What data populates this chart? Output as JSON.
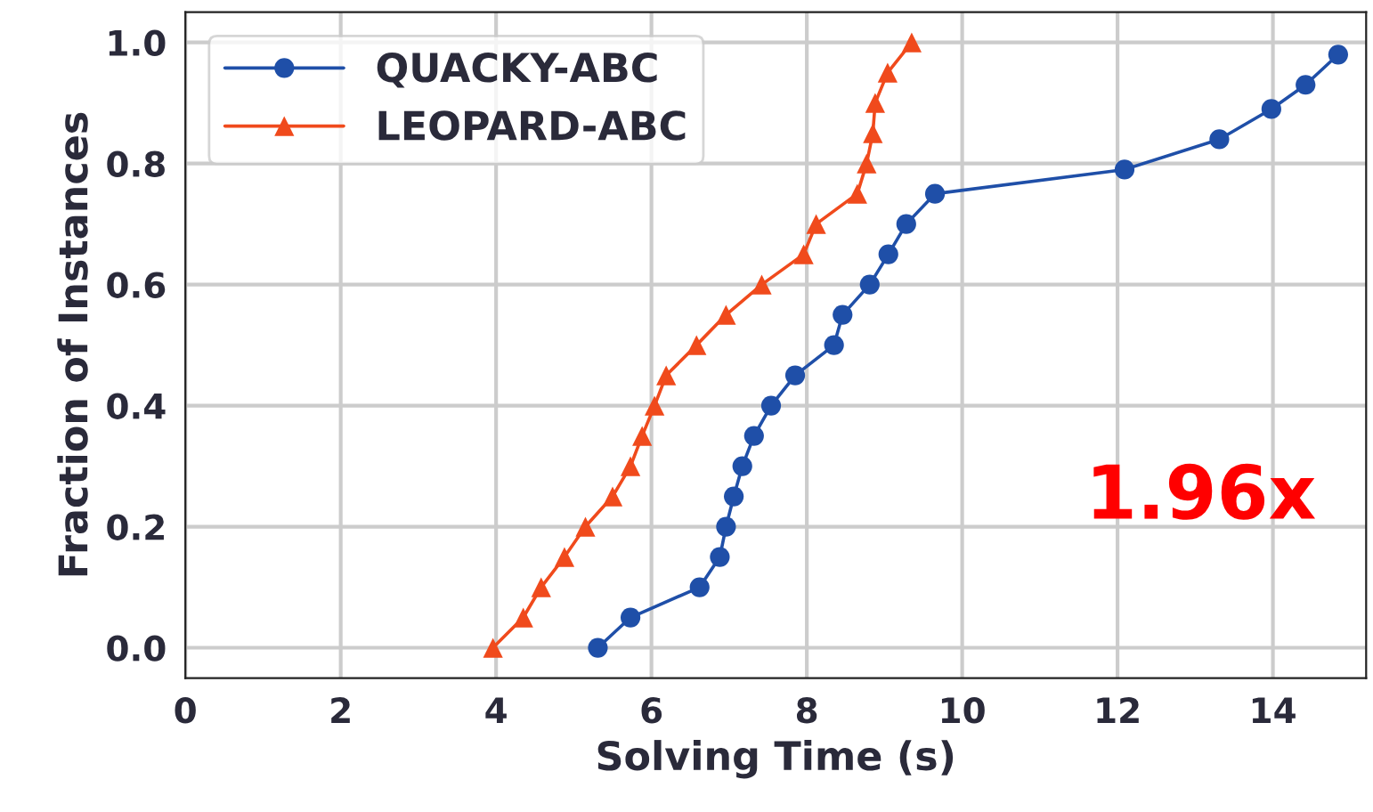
{
  "chart_data": {
    "type": "line",
    "xlabel": "Solving Time (s)",
    "ylabel": "Fraction of Instances",
    "xlim": [
      0,
      15.2
    ],
    "ylim": [
      -0.05,
      1.05
    ],
    "xticks": [
      0,
      2,
      4,
      6,
      8,
      10,
      12,
      14
    ],
    "yticks": [
      {
        "value": 0,
        "label": "0.0"
      },
      {
        "value": 0.2,
        "label": "0.2"
      },
      {
        "value": 0.4,
        "label": "0.4"
      },
      {
        "value": 0.6,
        "label": "0.6"
      },
      {
        "value": 0.8,
        "label": "0.8"
      },
      {
        "value": 1.0,
        "label": "1.0"
      }
    ],
    "grid": true,
    "legend": "top left",
    "annotations": [
      "1.96x"
    ],
    "series": [
      {
        "name": "QUACKY-ABC",
        "color": "#1f4fa8",
        "marker": "circle",
        "x": [
          5.31,
          5.73,
          6.62,
          6.88,
          6.96,
          7.06,
          7.17,
          7.32,
          7.54,
          7.85,
          8.35,
          8.46,
          8.81,
          9.05,
          9.28,
          9.65,
          12.09,
          13.31,
          13.98,
          14.42,
          14.84
        ],
        "values": [
          0,
          0.05,
          0.1,
          0.15,
          0.2,
          0.25,
          0.3,
          0.35,
          0.4,
          0.45,
          0.5,
          0.55,
          0.6,
          0.65,
          0.7,
          0.75,
          0.79,
          0.84,
          0.89,
          0.93,
          0.98
        ]
      },
      {
        "name": "LEOPARD-ABC",
        "color": "#f04a1c",
        "marker": "triangle",
        "x": [
          3.96,
          4.35,
          4.58,
          4.88,
          5.15,
          5.5,
          5.73,
          5.88,
          6.04,
          6.19,
          6.58,
          6.96,
          7.42,
          7.96,
          8.12,
          8.65,
          8.77,
          8.85,
          8.88,
          9.04,
          9.35
        ],
        "values": [
          0,
          0.05,
          0.1,
          0.15,
          0.2,
          0.25,
          0.3,
          0.35,
          0.4,
          0.45,
          0.5,
          0.55,
          0.6,
          0.65,
          0.7,
          0.75,
          0.8,
          0.85,
          0.9,
          0.95,
          1.0
        ]
      }
    ]
  }
}
